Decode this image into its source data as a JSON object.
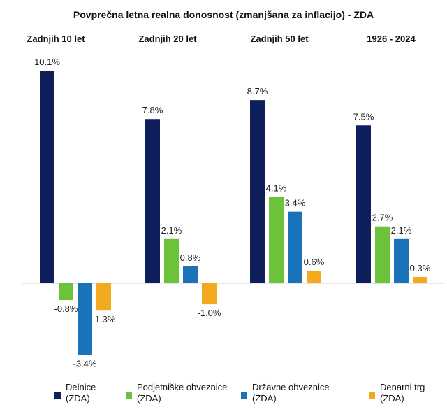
{
  "chart_data": {
    "type": "bar",
    "title": "Povprečna letna realna donosnost (zmanjšana za inflacijo) - ZDA",
    "categories": [
      "Zadnjih 10 let",
      "Zadnjih 20 let",
      "Zadnjih 50 let",
      "1926 - 2024"
    ],
    "series": [
      {
        "name_lines": [
          "Delnice",
          "(ZDA)"
        ],
        "color": "#0f1f5c",
        "values": [
          10.1,
          7.8,
          8.7,
          7.5
        ]
      },
      {
        "name_lines": [
          "Podjetniške obveznice",
          "(ZDA)"
        ],
        "color": "#6cc23a",
        "values": [
          -0.8,
          2.1,
          4.1,
          2.7
        ]
      },
      {
        "name_lines": [
          "Državne obveznice",
          "(ZDA)"
        ],
        "color": "#1a73b8",
        "values": [
          -3.4,
          0.8,
          3.4,
          2.1
        ]
      },
      {
        "name_lines": [
          "Denarni trg",
          "(ZDA)"
        ],
        "color": "#f2a91e",
        "values": [
          -1.3,
          -1.0,
          0.6,
          0.3
        ]
      }
    ],
    "value_suffix": "%",
    "ylim": [
      -4,
      11
    ],
    "grid": false,
    "legend": "bottom"
  }
}
